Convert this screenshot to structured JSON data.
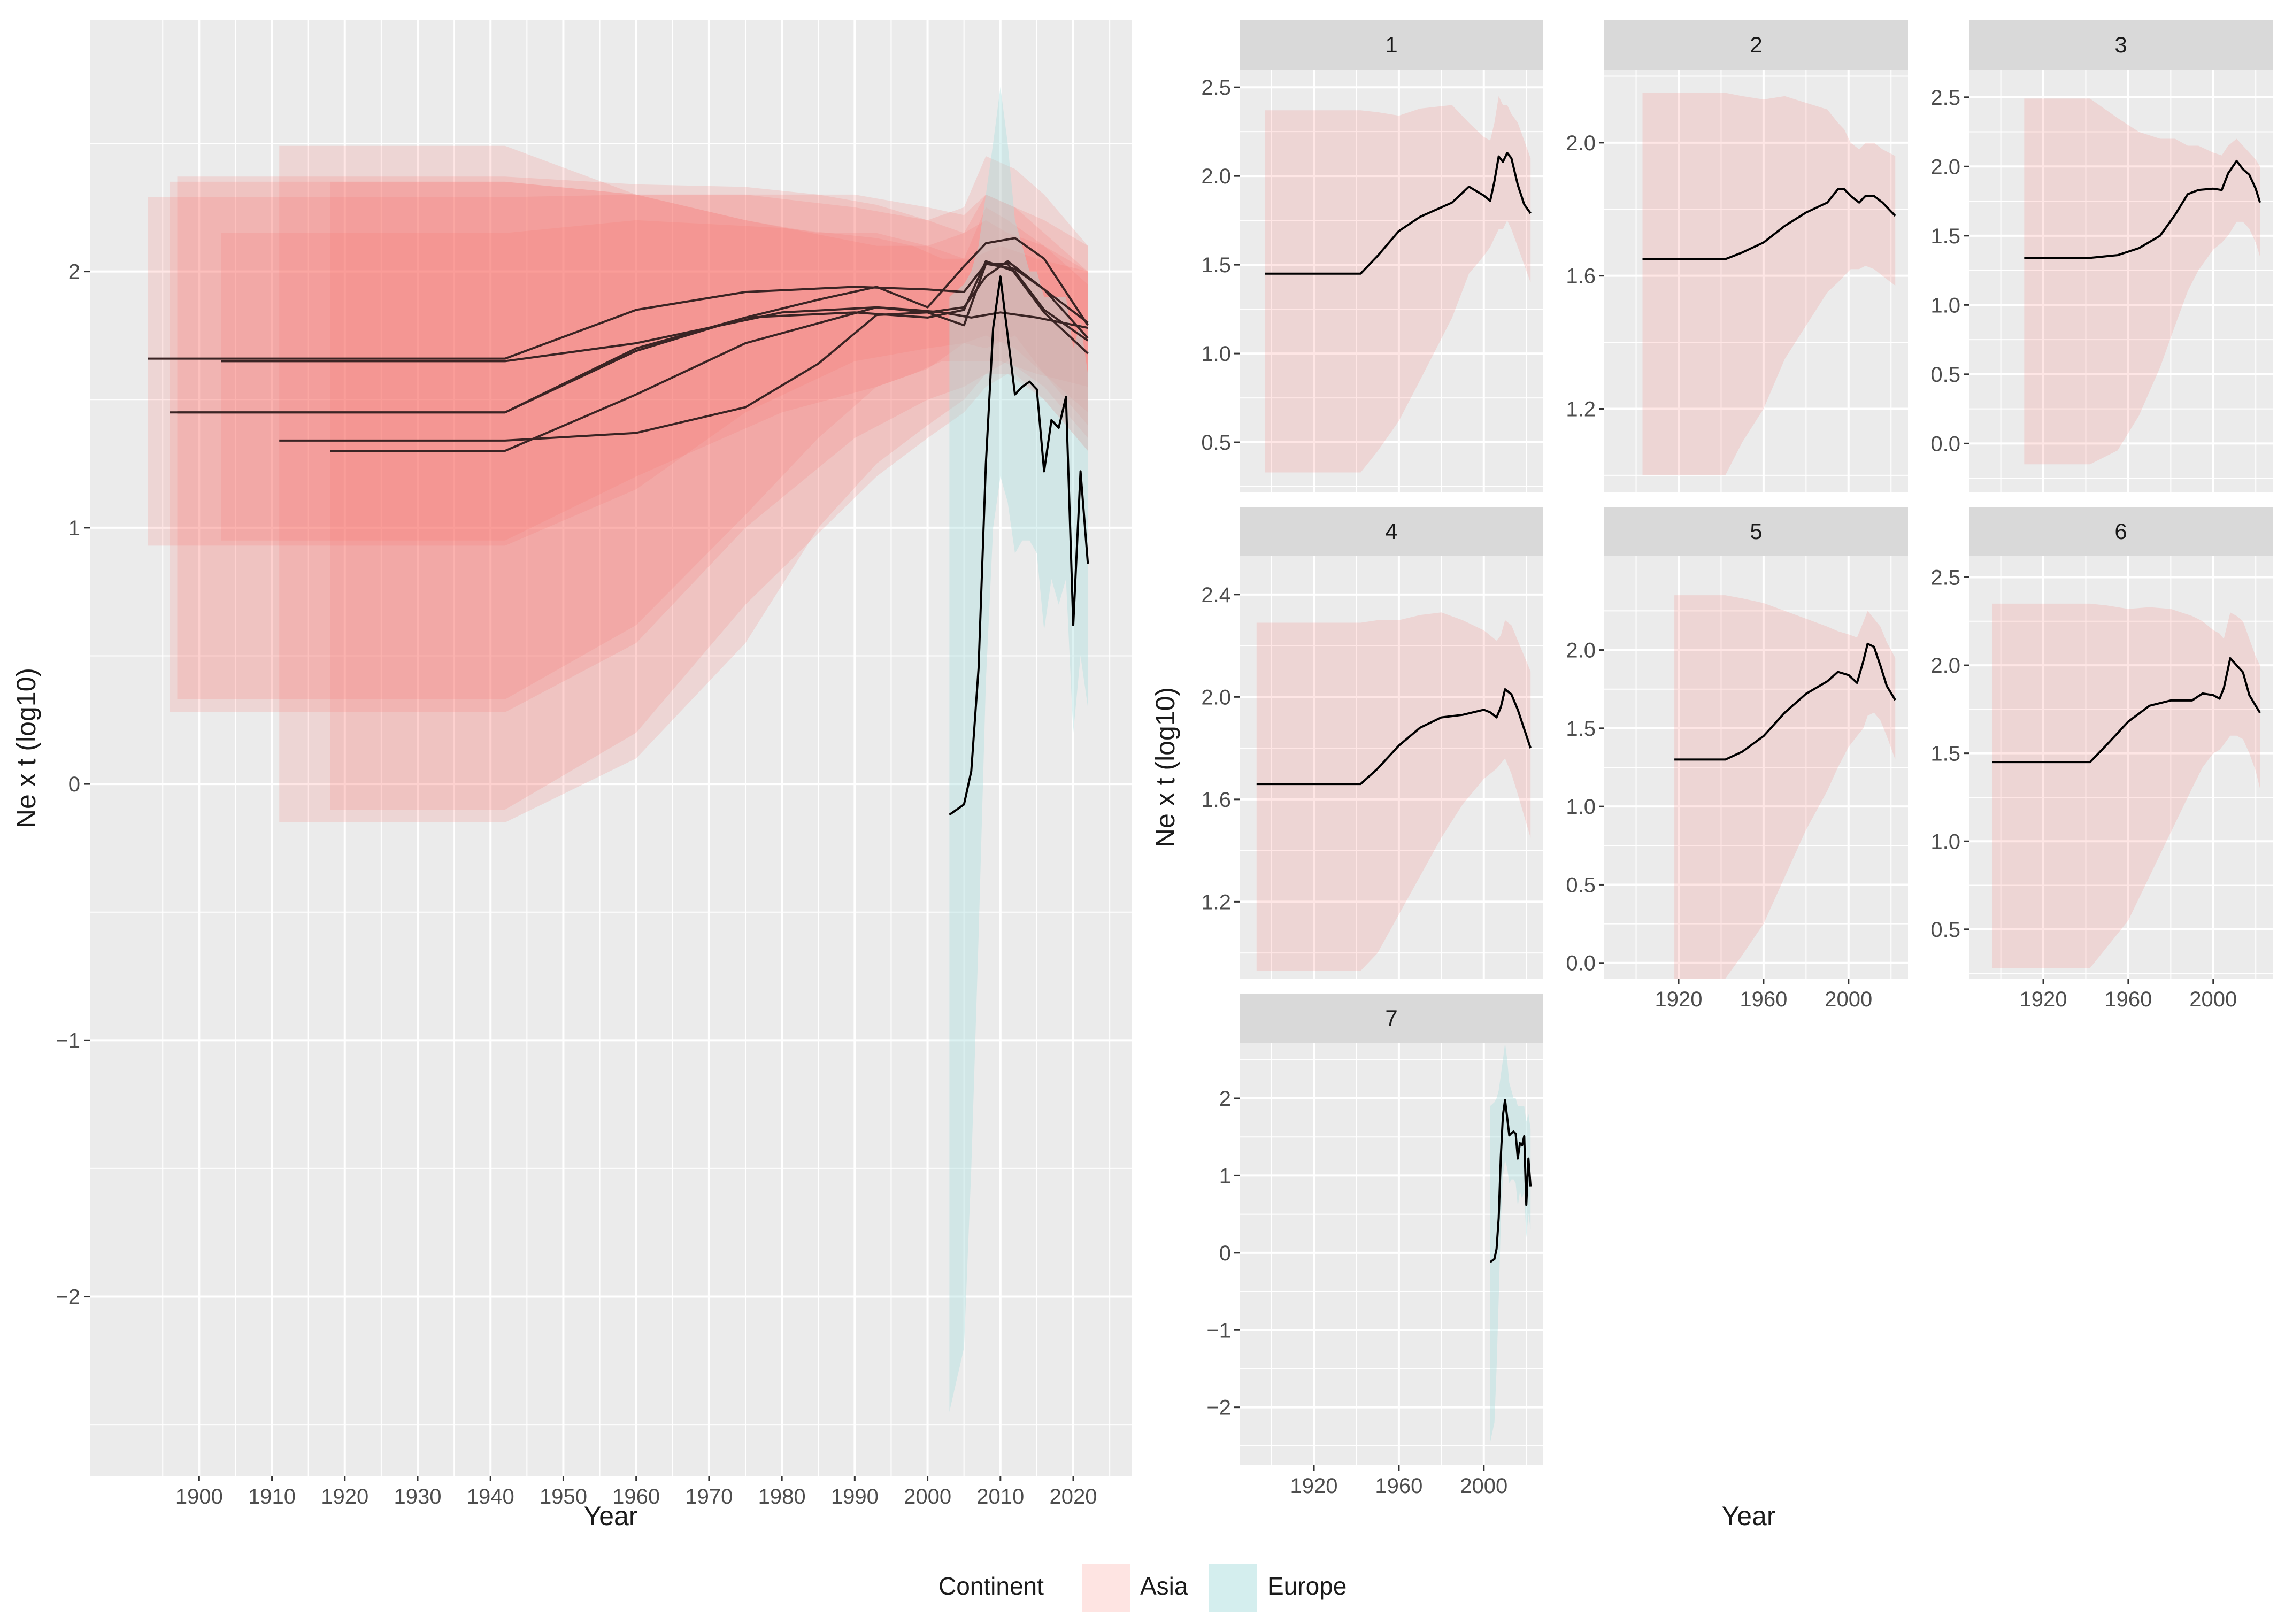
{
  "colors": {
    "asia": "#F8766D",
    "europe": "#A9DEDE",
    "panel_bg": "#EBEBEB",
    "strip_bg": "#D9D9D9",
    "grid": "#FFFFFF",
    "line": "#000000",
    "main_line": "#3a2424"
  },
  "legend": {
    "title": "Continent",
    "items": [
      {
        "label": "Asia",
        "color_key": "asia"
      },
      {
        "label": "Europe",
        "color_key": "europe"
      }
    ]
  },
  "chart_data": [
    {
      "type": "line",
      "panel": "overview",
      "xlabel": "Year",
      "ylabel": "Ne x t (log10)",
      "xlim": [
        1885,
        2028
      ],
      "ylim": [
        -2.7,
        2.98
      ],
      "x_ticks": [
        1900,
        1910,
        1920,
        1930,
        1940,
        1950,
        1960,
        1970,
        1980,
        1990,
        2000,
        2010,
        2020
      ],
      "y_ticks": [
        -2,
        -1,
        0,
        1,
        2
      ],
      "grid": true,
      "series": [
        {
          "continent": "Asia",
          "x": [
            1897,
            1942,
            1960,
            1975,
            1985,
            1993,
            2000,
            2005,
            2008,
            2012,
            2016,
            2022
          ],
          "y": [
            1.45,
            1.45,
            1.69,
            1.82,
            1.89,
            1.94,
            1.86,
            2.02,
            2.11,
            2.13,
            2.05,
            1.79
          ],
          "band_lo": [
            0.33,
            0.33,
            0.62,
            1.05,
            1.35,
            1.55,
            1.62,
            1.72,
            1.7,
            1.75,
            1.6,
            1.4
          ],
          "band_hi": [
            2.37,
            2.37,
            2.34,
            2.33,
            2.3,
            2.26,
            2.2,
            2.25,
            2.45,
            2.4,
            2.3,
            2.1
          ]
        },
        {
          "continent": "Asia",
          "x": [
            1903,
            1942,
            1960,
            1980,
            1993,
            1998,
            2002,
            2006,
            2010,
            2015,
            2022
          ],
          "y": [
            1.65,
            1.65,
            1.72,
            1.84,
            1.86,
            1.85,
            1.84,
            1.82,
            1.84,
            1.82,
            1.78
          ],
          "band_lo": [
            0.95,
            0.95,
            1.2,
            1.45,
            1.55,
            1.6,
            1.65,
            1.65,
            1.65,
            1.6,
            1.55
          ],
          "band_hi": [
            2.15,
            2.15,
            2.2,
            2.17,
            2.13,
            2.1,
            2.05,
            2.05,
            2.1,
            2.05,
            2.0
          ]
        },
        {
          "continent": "Asia",
          "x": [
            1911,
            1942,
            1960,
            1975,
            1985,
            1993,
            2000,
            2005,
            2008,
            2011,
            2016,
            2022
          ],
          "y": [
            1.34,
            1.34,
            1.37,
            1.47,
            1.64,
            1.83,
            1.84,
            1.86,
            1.98,
            2.04,
            1.93,
            1.74
          ],
          "band_lo": [
            -0.15,
            -0.15,
            0.1,
            0.55,
            1.0,
            1.25,
            1.4,
            1.5,
            1.6,
            1.65,
            1.55,
            1.35
          ],
          "band_hi": [
            2.49,
            2.49,
            2.3,
            2.2,
            2.15,
            2.15,
            2.1,
            2.15,
            2.2,
            2.15,
            2.1,
            2.0
          ]
        },
        {
          "continent": "Asia",
          "x": [
            1893,
            1942,
            1960,
            1975,
            1990,
            2000,
            2005,
            2008,
            2012,
            2016,
            2022
          ],
          "y": [
            1.66,
            1.66,
            1.85,
            1.92,
            1.94,
            1.93,
            1.92,
            2.03,
            2.01,
            1.93,
            1.8
          ],
          "band_lo": [
            0.93,
            0.93,
            1.15,
            1.45,
            1.65,
            1.7,
            1.72,
            1.75,
            1.7,
            1.6,
            1.45
          ],
          "band_hi": [
            2.29,
            2.29,
            2.3,
            2.3,
            2.3,
            2.25,
            2.22,
            2.3,
            2.25,
            2.2,
            2.1
          ]
        },
        {
          "continent": "Asia",
          "x": [
            1918,
            1942,
            1960,
            1975,
            1993,
            2000,
            2005,
            2008,
            2011,
            2016,
            2022
          ],
          "y": [
            1.3,
            1.3,
            1.52,
            1.72,
            1.86,
            1.84,
            1.79,
            2.03,
            2.03,
            1.84,
            1.68
          ],
          "band_lo": [
            -0.1,
            -0.1,
            0.2,
            0.7,
            1.2,
            1.35,
            1.45,
            1.55,
            1.6,
            1.5,
            1.3
          ],
          "band_hi": [
            2.35,
            2.35,
            2.3,
            2.2,
            2.1,
            2.1,
            2.05,
            2.25,
            2.2,
            2.1,
            1.95
          ]
        },
        {
          "continent": "Asia",
          "x": [
            1896,
            1942,
            1960,
            1975,
            1990,
            2000,
            2005,
            2008,
            2012,
            2016,
            2022
          ],
          "y": [
            1.45,
            1.45,
            1.7,
            1.82,
            1.84,
            1.82,
            1.85,
            2.04,
            2.0,
            1.85,
            1.73
          ],
          "band_lo": [
            0.28,
            0.28,
            0.55,
            1.0,
            1.35,
            1.5,
            1.55,
            1.6,
            1.6,
            1.5,
            1.3
          ],
          "band_hi": [
            2.35,
            2.35,
            2.3,
            2.3,
            2.25,
            2.2,
            2.15,
            2.3,
            2.25,
            2.15,
            2.0
          ]
        },
        {
          "continent": "Europe",
          "x": [
            2003,
            2005,
            2006,
            2007,
            2008,
            2009,
            2010,
            2011,
            2012,
            2013,
            2014,
            2015,
            2016,
            2017,
            2018,
            2019,
            2020,
            2021,
            2022
          ],
          "y": [
            -0.12,
            -0.08,
            0.05,
            0.45,
            1.25,
            1.78,
            1.98,
            1.75,
            1.52,
            1.55,
            1.57,
            1.54,
            1.22,
            1.42,
            1.39,
            1.51,
            0.62,
            1.22,
            0.86
          ],
          "band_lo": [
            -2.45,
            -2.2,
            -1.5,
            -0.6,
            0.4,
            1.0,
            1.2,
            1.1,
            0.9,
            0.95,
            0.95,
            0.9,
            0.6,
            0.8,
            0.7,
            0.8,
            0.2,
            0.5,
            0.3
          ],
          "band_hi": [
            1.9,
            1.95,
            2.0,
            2.1,
            2.3,
            2.5,
            2.72,
            2.5,
            2.2,
            2.1,
            2.0,
            2.0,
            1.9,
            1.9,
            1.9,
            1.9,
            1.7,
            1.8,
            1.6
          ]
        }
      ]
    },
    {
      "type": "line",
      "panel": "facet",
      "facet_label": "1",
      "continent": "Asia",
      "xlim": [
        1885,
        2028
      ],
      "ylim": [
        0.22,
        2.6
      ],
      "x_ticks": [],
      "y_ticks": [
        0.5,
        1.0,
        1.5,
        2.0,
        2.5
      ],
      "x": [
        1897,
        1942,
        1950,
        1960,
        1970,
        1985,
        1993,
        2000,
        2003,
        2005,
        2007,
        2009,
        2011,
        2013,
        2016,
        2019,
        2022
      ],
      "y": [
        1.45,
        1.45,
        1.55,
        1.69,
        1.77,
        1.85,
        1.94,
        1.89,
        1.86,
        1.97,
        2.11,
        2.08,
        2.13,
        2.1,
        1.95,
        1.84,
        1.79
      ],
      "band_lo": [
        0.33,
        0.33,
        0.45,
        0.62,
        0.85,
        1.2,
        1.45,
        1.55,
        1.6,
        1.65,
        1.7,
        1.7,
        1.75,
        1.7,
        1.6,
        1.5,
        1.4
      ],
      "band_hi": [
        2.37,
        2.37,
        2.36,
        2.34,
        2.38,
        2.4,
        2.3,
        2.22,
        2.2,
        2.3,
        2.45,
        2.4,
        2.4,
        2.35,
        2.3,
        2.2,
        2.1
      ]
    },
    {
      "type": "line",
      "panel": "facet",
      "facet_label": "2",
      "continent": "Asia",
      "xlim": [
        1885,
        2028
      ],
      "ylim": [
        0.95,
        2.22
      ],
      "x_ticks": [],
      "y_ticks": [
        1.2,
        1.6,
        2.0
      ],
      "x": [
        1903,
        1942,
        1950,
        1960,
        1970,
        1980,
        1990,
        1995,
        1998,
        2001,
        2005,
        2008,
        2012,
        2016,
        2022
      ],
      "y": [
        1.65,
        1.65,
        1.67,
        1.7,
        1.75,
        1.79,
        1.82,
        1.86,
        1.86,
        1.84,
        1.82,
        1.84,
        1.84,
        1.82,
        1.78
      ],
      "band_lo": [
        1.0,
        1.0,
        1.1,
        1.2,
        1.35,
        1.45,
        1.55,
        1.58,
        1.6,
        1.62,
        1.62,
        1.63,
        1.62,
        1.6,
        1.57
      ],
      "band_hi": [
        2.15,
        2.15,
        2.14,
        2.13,
        2.14,
        2.12,
        2.1,
        2.06,
        2.04,
        2.0,
        1.98,
        2.0,
        2.0,
        1.98,
        1.96
      ]
    },
    {
      "type": "line",
      "panel": "facet",
      "facet_label": "3",
      "continent": "Asia",
      "xlim": [
        1885,
        2028
      ],
      "ylim": [
        -0.35,
        2.7
      ],
      "x_ticks": [],
      "y_ticks": [
        0.0,
        0.5,
        1.0,
        1.5,
        2.0,
        2.5
      ],
      "x": [
        1911,
        1942,
        1955,
        1965,
        1975,
        1982,
        1988,
        1993,
        2000,
        2004,
        2007,
        2011,
        2014,
        2017,
        2020,
        2022
      ],
      "y": [
        1.34,
        1.34,
        1.36,
        1.41,
        1.5,
        1.65,
        1.8,
        1.83,
        1.84,
        1.83,
        1.95,
        2.04,
        1.98,
        1.94,
        1.84,
        1.74
      ],
      "band_lo": [
        -0.15,
        -0.15,
        -0.05,
        0.2,
        0.55,
        0.85,
        1.1,
        1.25,
        1.4,
        1.45,
        1.5,
        1.6,
        1.6,
        1.55,
        1.45,
        1.35
      ],
      "band_hi": [
        2.49,
        2.49,
        2.35,
        2.25,
        2.2,
        2.2,
        2.15,
        2.15,
        2.1,
        2.08,
        2.15,
        2.2,
        2.15,
        2.1,
        2.05,
        2.0
      ]
    },
    {
      "type": "line",
      "panel": "facet",
      "facet_label": "4",
      "continent": "Asia",
      "xlim": [
        1885,
        2028
      ],
      "ylim": [
        0.9,
        2.55
      ],
      "x_ticks": [],
      "y_ticks": [
        1.2,
        1.6,
        2.0,
        2.4
      ],
      "x": [
        1893,
        1942,
        1950,
        1960,
        1970,
        1980,
        1990,
        2000,
        2003,
        2006,
        2008,
        2010,
        2013,
        2016,
        2022
      ],
      "y": [
        1.66,
        1.66,
        1.72,
        1.81,
        1.88,
        1.92,
        1.93,
        1.95,
        1.94,
        1.92,
        1.96,
        2.03,
        2.01,
        1.95,
        1.8
      ],
      "band_lo": [
        0.93,
        0.93,
        1.0,
        1.15,
        1.3,
        1.45,
        1.58,
        1.68,
        1.7,
        1.72,
        1.74,
        1.76,
        1.7,
        1.62,
        1.45
      ],
      "band_hi": [
        2.29,
        2.29,
        2.3,
        2.3,
        2.32,
        2.33,
        2.3,
        2.26,
        2.24,
        2.22,
        2.24,
        2.3,
        2.28,
        2.22,
        2.1
      ]
    },
    {
      "type": "line",
      "panel": "facet",
      "facet_label": "5",
      "continent": "Asia",
      "xlim": [
        1885,
        2028
      ],
      "ylim": [
        -0.1,
        2.6
      ],
      "x_ticks": [
        1920,
        1960,
        2000
      ],
      "y_ticks": [
        0.0,
        0.5,
        1.0,
        1.5,
        2.0
      ],
      "x": [
        1918,
        1942,
        1950,
        1960,
        1970,
        1980,
        1990,
        1995,
        2000,
        2004,
        2007,
        2009,
        2012,
        2015,
        2018,
        2022
      ],
      "y": [
        1.3,
        1.3,
        1.35,
        1.45,
        1.6,
        1.72,
        1.8,
        1.86,
        1.84,
        1.79,
        1.93,
        2.04,
        2.02,
        1.9,
        1.77,
        1.68
      ],
      "band_lo": [
        -0.1,
        -0.1,
        0.05,
        0.25,
        0.55,
        0.85,
        1.1,
        1.25,
        1.38,
        1.45,
        1.5,
        1.58,
        1.6,
        1.55,
        1.45,
        1.3
      ],
      "band_hi": [
        2.35,
        2.35,
        2.33,
        2.3,
        2.25,
        2.2,
        2.15,
        2.12,
        2.1,
        2.08,
        2.18,
        2.25,
        2.2,
        2.15,
        2.05,
        1.95
      ]
    },
    {
      "type": "line",
      "panel": "facet",
      "facet_label": "6",
      "continent": "Asia",
      "xlim": [
        1885,
        2028
      ],
      "ylim": [
        0.22,
        2.62
      ],
      "x_ticks": [
        1920,
        1960,
        2000
      ],
      "y_ticks": [
        0.5,
        1.0,
        1.5,
        2.0,
        2.5
      ],
      "x": [
        1896,
        1942,
        1950,
        1960,
        1970,
        1980,
        1990,
        1995,
        2000,
        2003,
        2005,
        2008,
        2011,
        2014,
        2017,
        2020,
        2022
      ],
      "y": [
        1.45,
        1.45,
        1.55,
        1.68,
        1.77,
        1.8,
        1.8,
        1.84,
        1.83,
        1.81,
        1.87,
        2.04,
        2.0,
        1.96,
        1.83,
        1.77,
        1.73
      ],
      "band_lo": [
        0.28,
        0.28,
        0.4,
        0.55,
        0.8,
        1.05,
        1.3,
        1.42,
        1.5,
        1.52,
        1.55,
        1.6,
        1.6,
        1.58,
        1.5,
        1.4,
        1.3
      ],
      "band_hi": [
        2.35,
        2.35,
        2.34,
        2.32,
        2.33,
        2.32,
        2.28,
        2.25,
        2.2,
        2.18,
        2.15,
        2.3,
        2.28,
        2.25,
        2.15,
        2.05,
        2.0
      ]
    },
    {
      "type": "line",
      "panel": "facet",
      "facet_label": "7",
      "continent": "Europe",
      "xlim": [
        1885,
        2028
      ],
      "ylim": [
        -2.75,
        2.72
      ],
      "x_ticks": [
        1920,
        1960,
        2000
      ],
      "y_ticks": [
        -2,
        -1,
        0,
        1,
        2
      ],
      "x": [
        2003,
        2005,
        2006,
        2007,
        2008,
        2009,
        2010,
        2011,
        2012,
        2013,
        2014,
        2015,
        2016,
        2017,
        2018,
        2019,
        2020,
        2021,
        2022
      ],
      "y": [
        -0.12,
        -0.08,
        0.05,
        0.45,
        1.25,
        1.78,
        1.98,
        1.75,
        1.52,
        1.55,
        1.57,
        1.54,
        1.22,
        1.42,
        1.39,
        1.51,
        0.62,
        1.22,
        0.86
      ],
      "band_lo": [
        -2.45,
        -2.2,
        -1.5,
        -0.6,
        0.4,
        1.0,
        1.2,
        1.1,
        0.9,
        0.95,
        0.95,
        0.9,
        0.6,
        0.8,
        0.7,
        0.8,
        0.2,
        0.5,
        0.3
      ],
      "band_hi": [
        1.9,
        1.95,
        2.0,
        2.1,
        2.3,
        2.5,
        2.72,
        2.5,
        2.2,
        2.1,
        2.0,
        2.0,
        1.9,
        1.9,
        1.9,
        1.9,
        1.7,
        1.8,
        1.6
      ]
    }
  ]
}
